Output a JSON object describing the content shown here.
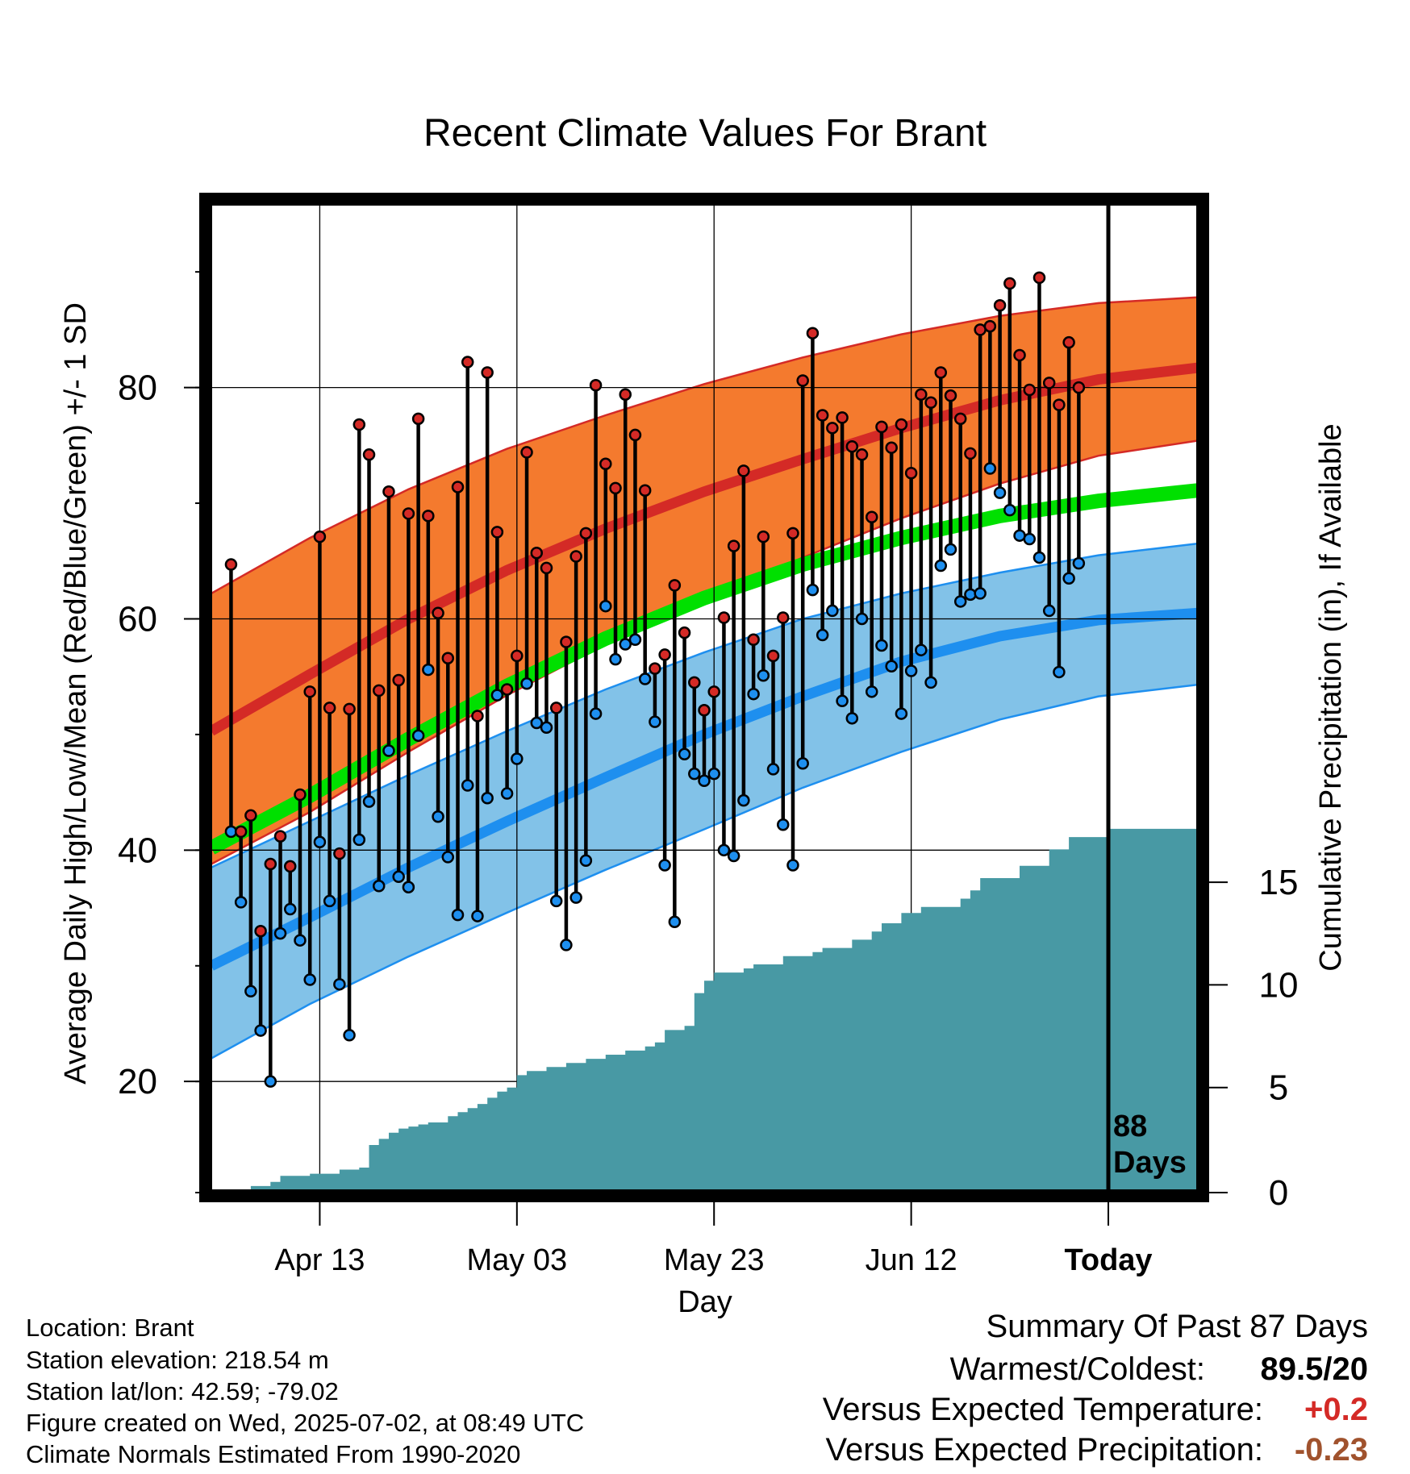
{
  "chart_data": {
    "type": "line",
    "title": "Recent Climate Values For Brant",
    "xlabel": "Day",
    "ylabel_left": "Average Daily High/Low/Mean (Red/Blue/Green) +/- 1 SD",
    "ylabel_right": "Cumulative Precipitation (in), If Available",
    "x_ticks": [
      "Apr 13",
      "May 03",
      "May 23",
      "Jun 12",
      "Today"
    ],
    "x_tick_days": [
      11,
      31,
      51,
      71,
      91
    ],
    "xlim": [
      0,
      100
    ],
    "y_left_ticks": [
      20,
      40,
      60,
      80
    ],
    "ylim_left": [
      10.6,
      95.8
    ],
    "y_right_ticks": [
      0,
      5,
      10,
      15
    ],
    "ylim_right": [
      0,
      48
    ],
    "today_day": 91,
    "today_annotation": [
      "88",
      "Days"
    ],
    "grid": true,
    "colors": {
      "high_band": "#f47a2e",
      "high_mean": "#d42a26",
      "low_band": "#82c2e8",
      "low_mean": "#1e8fef",
      "mean": "#00e000",
      "precip": "#4899a4",
      "high_dot": "#d42a26",
      "low_dot": "#1e8fef",
      "warm_value": "#d42a26",
      "precip_value": "#a0522d"
    },
    "normals": {
      "days": [
        0,
        10,
        20,
        30,
        40,
        50,
        60,
        70,
        80,
        90,
        100
      ],
      "high_mean": [
        50.3,
        55.2,
        60.0,
        64.2,
        67.8,
        71.0,
        73.8,
        76.5,
        78.9,
        80.7,
        81.7
      ],
      "high_upper": [
        62.2,
        67.0,
        71.2,
        74.7,
        77.6,
        80.3,
        82.6,
        84.6,
        86.2,
        87.3,
        87.8
      ],
      "high_lower": [
        38.8,
        43.3,
        48.5,
        53.4,
        57.8,
        61.8,
        65.3,
        68.7,
        71.7,
        74.1,
        75.4
      ],
      "mean": [
        40.2,
        44.7,
        49.6,
        54.2,
        58.3,
        61.8,
        64.7,
        67.0,
        68.9,
        70.2,
        71.1
      ],
      "low_mean": [
        30.0,
        34.2,
        38.5,
        42.5,
        46.3,
        50.0,
        53.3,
        56.3,
        58.5,
        59.9,
        60.5
      ],
      "low_upper": [
        38.5,
        42.5,
        46.5,
        50.3,
        53.9,
        57.1,
        60.0,
        62.2,
        64.0,
        65.5,
        66.5
      ],
      "low_lower": [
        22.0,
        26.7,
        30.8,
        34.6,
        38.3,
        41.8,
        45.4,
        48.5,
        51.3,
        53.3,
        54.3
      ]
    },
    "series": [
      {
        "name": "Daily High",
        "start_day": 2,
        "values": [
          64.7,
          41.6,
          43.0,
          33.0,
          38.8,
          41.2,
          38.6,
          44.8,
          53.7,
          67.1,
          52.3,
          39.7,
          52.2,
          76.8,
          74.2,
          53.8,
          71.0,
          54.7,
          69.1,
          77.3,
          68.9,
          60.5,
          56.6,
          71.4,
          82.2,
          51.6,
          81.3,
          67.5,
          53.9,
          56.8,
          74.4,
          65.7,
          64.4,
          52.3,
          58.0,
          65.4,
          67.4,
          80.2,
          73.4,
          71.3,
          79.4,
          75.9,
          71.1,
          55.7,
          56.9,
          62.9,
          58.8,
          54.5,
          52.1,
          53.7,
          60.1,
          66.3,
          72.8,
          58.2,
          67.1,
          56.8,
          60.1,
          67.4,
          80.6,
          84.7,
          77.6,
          76.5,
          77.4,
          74.9,
          74.2,
          68.8,
          76.6,
          74.8,
          76.8,
          72.6,
          79.4,
          78.7,
          81.3,
          79.3,
          77.3,
          74.3,
          85.0,
          85.3,
          87.1,
          89.0,
          82.8,
          79.8,
          89.5,
          80.4,
          78.5,
          83.9,
          80.0
        ]
      },
      {
        "name": "Daily Low",
        "start_day": 2,
        "values": [
          41.6,
          35.5,
          27.8,
          24.4,
          20.0,
          32.8,
          34.9,
          32.2,
          28.8,
          40.7,
          35.6,
          28.4,
          24.0,
          40.9,
          44.2,
          36.9,
          48.6,
          37.7,
          36.8,
          49.9,
          55.6,
          42.9,
          39.4,
          34.4,
          45.6,
          34.3,
          44.5,
          53.4,
          44.9,
          47.9,
          54.4,
          51.0,
          50.6,
          35.6,
          31.8,
          35.9,
          39.1,
          51.8,
          61.1,
          56.5,
          57.8,
          58.2,
          54.8,
          51.1,
          38.7,
          33.8,
          48.3,
          46.6,
          46.0,
          46.6,
          40.0,
          39.5,
          44.3,
          53.5,
          55.1,
          47.0,
          42.2,
          38.7,
          47.5,
          62.5,
          58.6,
          60.7,
          52.9,
          51.4,
          60.0,
          53.7,
          57.7,
          55.9,
          51.8,
          55.5,
          57.3,
          54.5,
          64.6,
          66.0,
          61.5,
          62.1,
          62.2,
          73.0,
          70.9,
          69.4,
          67.2,
          66.9,
          65.3,
          60.7,
          55.4,
          63.5,
          64.8
        ]
      }
    ],
    "precip_cumulative": {
      "days": [
        0,
        4,
        6,
        7,
        10,
        13,
        15,
        16,
        17,
        18,
        19,
        20,
        21,
        22,
        24,
        25,
        26,
        27,
        28,
        29,
        30,
        31,
        32,
        34,
        36,
        38,
        40,
        42,
        44,
        45,
        46,
        48,
        49,
        50,
        51,
        54,
        55,
        58,
        61,
        62,
        65,
        67,
        68,
        70,
        72,
        76,
        77,
        78,
        82,
        85,
        87,
        91,
        100
      ],
      "values": [
        0.0,
        0.2,
        0.4,
        0.7,
        0.8,
        1.0,
        1.1,
        2.2,
        2.5,
        2.8,
        3.0,
        3.1,
        3.2,
        3.3,
        3.6,
        3.8,
        4.0,
        4.2,
        4.5,
        4.8,
        5.0,
        5.6,
        5.8,
        6.0,
        6.2,
        6.4,
        6.6,
        6.8,
        7.0,
        7.2,
        7.8,
        8.0,
        9.6,
        10.2,
        10.6,
        10.8,
        11.0,
        11.4,
        11.6,
        11.8,
        12.2,
        12.6,
        13.0,
        13.5,
        13.8,
        14.2,
        14.6,
        15.2,
        15.8,
        16.6,
        17.2,
        17.6,
        17.8
      ]
    }
  },
  "info": {
    "location": "Location: Brant",
    "elevation": "Station elevation: 218.54 m",
    "latlon": "Station lat/lon: 42.59; -79.02",
    "created": "Figure created on Wed, 2025-07-02, at 08:49 UTC",
    "normals": "Climate Normals Estimated From 1990-2020"
  },
  "summary": {
    "title": "Summary Of Past 87 Days",
    "warmest_label": "Warmest/Coldest:",
    "warmest_value": "89.5/20",
    "temp_label": "Versus Expected Temperature:",
    "temp_value": "+0.2",
    "precip_label": "Versus Expected Precipitation:",
    "precip_value": "-0.23"
  }
}
